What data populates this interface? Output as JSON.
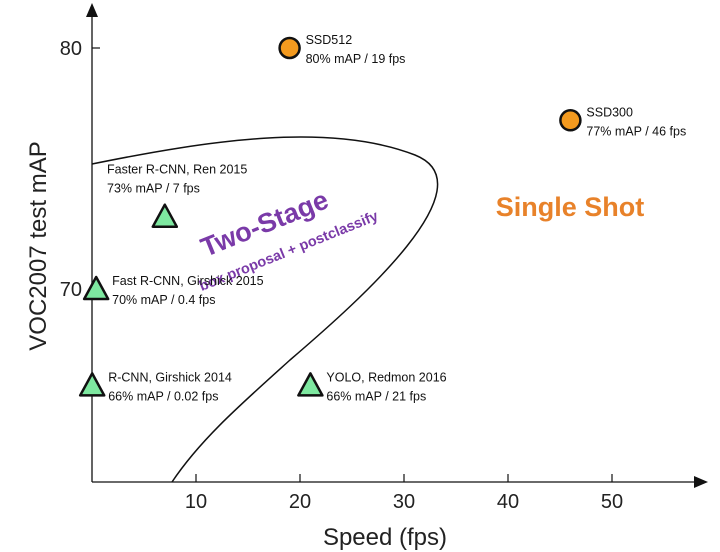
{
  "chart_data": {
    "type": "scatter",
    "title": "",
    "xlabel": "Speed (fps)",
    "ylabel": "VOC2007 test mAP",
    "xlim": [
      0,
      58
    ],
    "ylim": [
      62,
      82
    ],
    "xticks": [
      10,
      20,
      30,
      40,
      50
    ],
    "yticks": [
      70,
      80
    ],
    "series": [
      {
        "name": "Two-Stage",
        "color": "#7ee8a0",
        "marker": "triangle",
        "points": [
          {
            "name": "Faster R-CNN, Ren 2015",
            "x": 7,
            "y": 73,
            "caption": "73% mAP / 7 fps"
          },
          {
            "name": "Fast R-CNN, Girshick 2015",
            "x": 0.4,
            "y": 70,
            "caption": "70% mAP / 0.4 fps"
          },
          {
            "name": "R-CNN, Girshick 2014",
            "x": 0.02,
            "y": 66,
            "caption": "66% mAP / 0.02 fps"
          }
        ]
      },
      {
        "name": "Single Shot",
        "color": "#f39a1f",
        "marker": "circle",
        "points": [
          {
            "name": "SSD512",
            "x": 19,
            "y": 80,
            "caption": "80% mAP / 19 fps"
          },
          {
            "name": "SSD300",
            "x": 46,
            "y": 77,
            "caption": "77% mAP / 46 fps"
          },
          {
            "name": "YOLO, Redmon 2016",
            "x": 21,
            "y": 66,
            "caption": "66% mAP / 21 fps",
            "marker": "triangle",
            "color": "#7ee8a0"
          }
        ]
      }
    ],
    "annotations": {
      "two_stage_title": "Two-Stage",
      "two_stage_subtitle": "box proposal + postclassify",
      "single_shot_title": "Single Shot",
      "two_stage_color": "#7a3aa8",
      "single_shot_color": "#e8822a"
    }
  }
}
